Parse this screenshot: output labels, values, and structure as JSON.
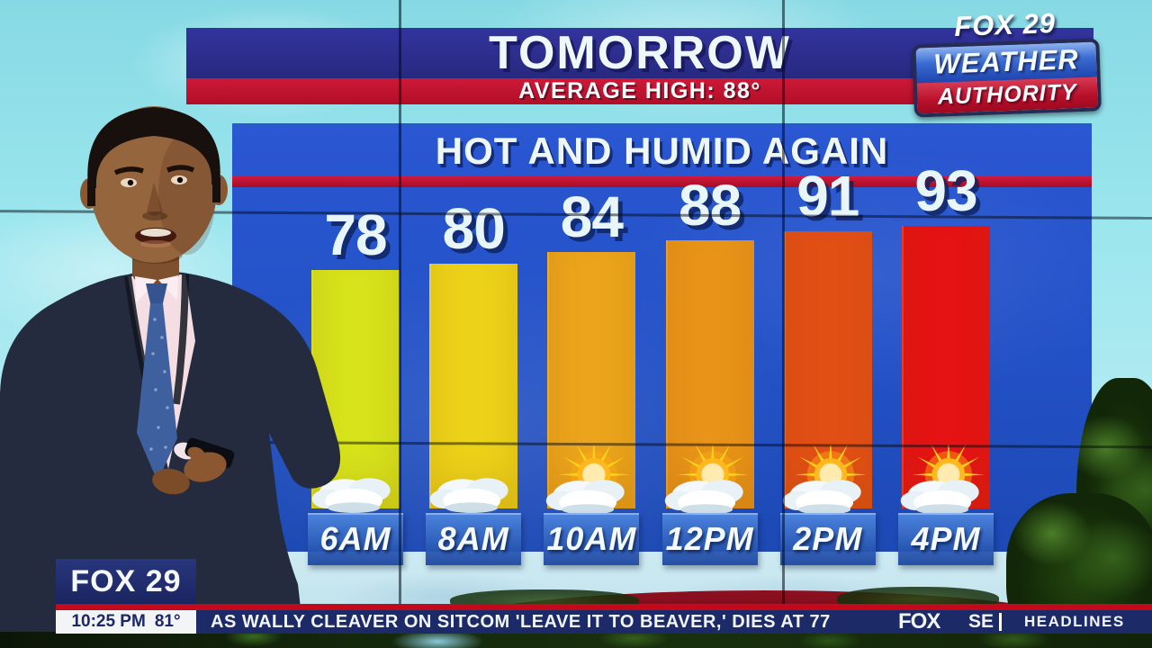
{
  "banner": {
    "title": "TOMORROW",
    "subtitle": "AVERAGE HIGH: 88°"
  },
  "branding": {
    "logo_station": "FOX 29",
    "logo_line1": "WEATHER",
    "logo_line2": "AUTHORITY",
    "bug_station": "FOX 29",
    "bug_time": "10:25 PM",
    "bug_temp": "81°"
  },
  "chart_data": {
    "type": "bar",
    "title": "HOT AND HUMID AGAIN",
    "categories": [
      "6AM",
      "8AM",
      "10AM",
      "12PM",
      "2PM",
      "4PM"
    ],
    "values": [
      78,
      80,
      84,
      88,
      91,
      93
    ],
    "bar_colors": [
      "#d7e31b",
      "#ecd219",
      "#eba41b",
      "#e89419",
      "#e24f15",
      "#e51313"
    ],
    "icons": [
      "cloudy",
      "cloudy",
      "partly-sunny",
      "partly-sunny",
      "partly-sunny",
      "partly-sunny"
    ],
    "xlabel": "",
    "ylabel": "",
    "legend": "none",
    "grid": false
  },
  "ticker": {
    "headline": "AS WALLY CLEAVER ON SITCOM 'LEAVE IT TO BEAVER,' DIES AT 77",
    "network": "FOX",
    "partial_text": "SE",
    "section_label": "HEADLINES"
  },
  "colors": {
    "banner_navy": "#2c2f95",
    "banner_red": "#c11330",
    "panel_blue": "#2253cb",
    "panel_stripe_red": "#c41838",
    "ticker_navy": "#1d2a68",
    "ticker_red": "#c20a1c",
    "temp_text": "#e9f6f9"
  }
}
